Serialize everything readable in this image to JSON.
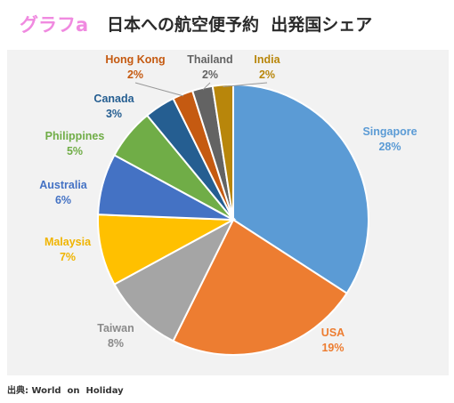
{
  "header": {
    "figure_label": "グラフa",
    "title": "日本への航空便予約  出発国シェア"
  },
  "source": "出典: World  on  Holiday",
  "chart_data": {
    "type": "pie",
    "title": "日本への航空便予約  出発国シェア",
    "start_angle_deg": 0,
    "direction": "clockwise",
    "slices": [
      {
        "name": "Singapore",
        "pct_label": "28%",
        "value": 28,
        "color": "#5b9bd5",
        "label_color": "#5b9bd5"
      },
      {
        "name": "USA",
        "pct_label": "19%",
        "value": 19,
        "color": "#ed7d31",
        "label_color": "#ed7d31"
      },
      {
        "name": "Taiwan",
        "pct_label": "8%",
        "value": 8,
        "color": "#a5a5a5",
        "label_color": "#8a8a8a"
      },
      {
        "name": "Malaysia",
        "pct_label": "7%",
        "value": 7,
        "color": "#ffc000",
        "label_color": "#f0b400"
      },
      {
        "name": "Australia",
        "pct_label": "6%",
        "value": 6,
        "color": "#4472c4",
        "label_color": "#4472c4"
      },
      {
        "name": "Philippines",
        "pct_label": "5%",
        "value": 5,
        "color": "#70ad47",
        "label_color": "#70ad47"
      },
      {
        "name": "Canada",
        "pct_label": "3%",
        "value": 3,
        "color": "#255e91",
        "label_color": "#255e91"
      },
      {
        "name": "Hong Kong",
        "pct_label": "2%",
        "value": 2,
        "color": "#c55a11",
        "label_color": "#c55a11"
      },
      {
        "name": "Thailand",
        "pct_label": "2%",
        "value": 2,
        "color": "#636363",
        "label_color": "#636363"
      },
      {
        "name": "India",
        "pct_label": "2%",
        "value": 2,
        "color": "#b8860b",
        "label_color": "#b8860b"
      }
    ]
  }
}
